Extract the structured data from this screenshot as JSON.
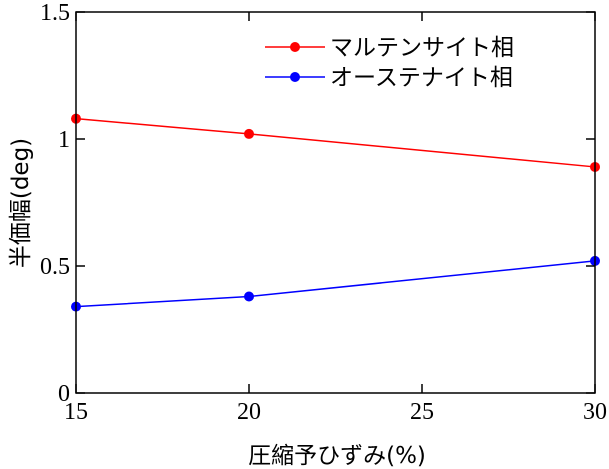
{
  "chart_data": {
    "type": "line",
    "xlabel": "圧縮予ひずみ(%)",
    "ylabel": "半価幅(deg)",
    "xlim": [
      15,
      30
    ],
    "ylim": [
      0,
      1.5
    ],
    "x_ticks": [
      15,
      20,
      25,
      30
    ],
    "x_tick_labels": [
      "15",
      "20",
      "25",
      "30"
    ],
    "y_ticks": [
      0,
      0.5,
      1,
      1.5
    ],
    "y_tick_labels": [
      "0",
      "0.5",
      "1",
      "1.5"
    ],
    "grid": false,
    "legend_position": "top-right",
    "series": [
      {
        "name": "マルテンサイト相",
        "color": "#ff0000",
        "x": [
          15,
          20,
          30
        ],
        "y": [
          1.08,
          1.02,
          0.89
        ]
      },
      {
        "name": "オーステナイト相",
        "color": "#0000ff",
        "x": [
          15,
          20,
          30
        ],
        "y": [
          0.34,
          0.38,
          0.52
        ]
      }
    ]
  }
}
